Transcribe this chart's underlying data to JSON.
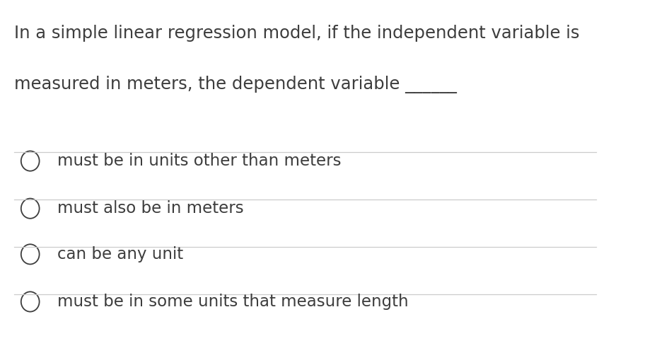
{
  "background_color": "#ffffff",
  "question_line1": "In a simple linear regression model, if the independent variable is",
  "question_line2": "measured in meters, the dependent variable ______",
  "options": [
    "must be in units other than meters",
    "must also be in meters",
    "can be any unit",
    "must be in some units that measure length"
  ],
  "text_color": "#3d3d3d",
  "line_color": "#cccccc",
  "font_size_question": 17.5,
  "font_size_options": 16.5,
  "circle_color": "#3d3d3d",
  "fig_width": 9.46,
  "fig_height": 4.82
}
